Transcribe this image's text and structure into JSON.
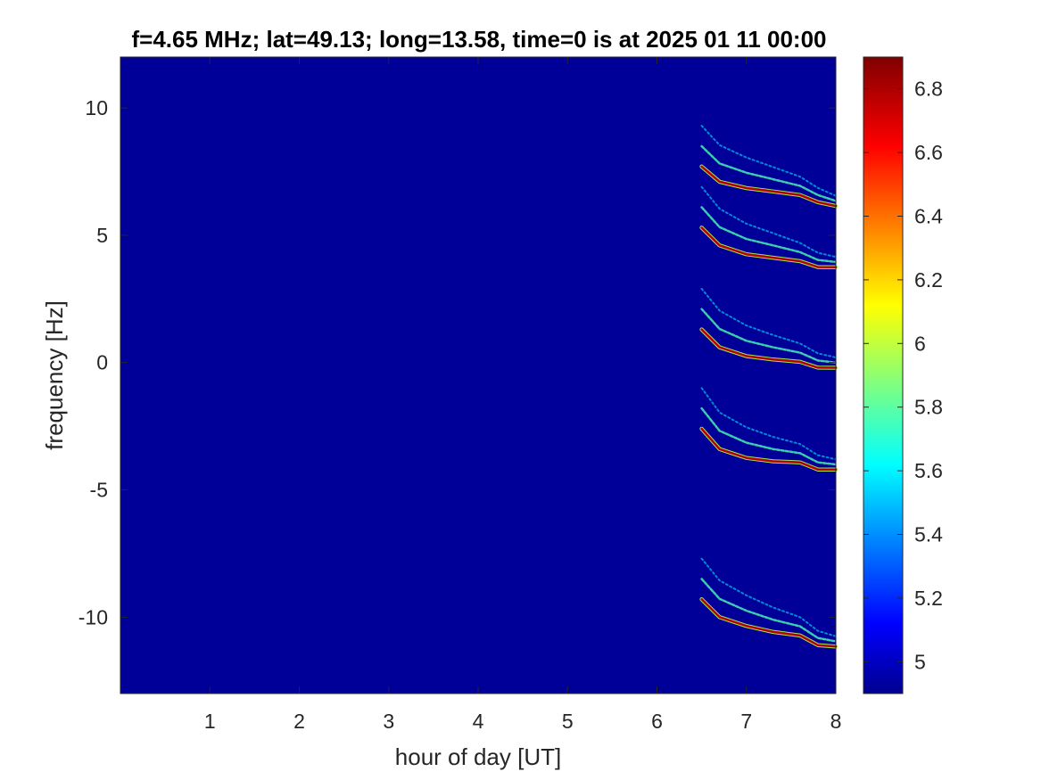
{
  "chart_data": {
    "type": "heatmap",
    "title": "f=4.65 MHz;  lat=49.13; long=13.58, time=0 is at 2025 01 11 00:00",
    "xlabel": "hour of day [UT]",
    "ylabel": "frequency [Hz]",
    "xlim": [
      0,
      8
    ],
    "ylim": [
      -13,
      12
    ],
    "x_ticks": [
      1,
      2,
      3,
      4,
      5,
      6,
      7,
      8
    ],
    "y_ticks": [
      -10,
      -5,
      0,
      5,
      10
    ],
    "colorbar": {
      "colormap": "jet",
      "clim": [
        4.9,
        6.9
      ],
      "ticks": [
        5,
        5.2,
        5.4,
        5.6,
        5.8,
        6,
        6.2,
        6.4,
        6.6,
        6.8
      ]
    },
    "background_value": 4.95,
    "traces": [
      {
        "x": [
          6.5,
          6.7,
          7.0,
          7.3,
          7.6,
          7.8,
          8.0
        ],
        "y": [
          7.7,
          7.1,
          6.9,
          6.7,
          6.5,
          6.4,
          6.2
        ]
      },
      {
        "x": [
          6.5,
          6.7,
          7.0,
          7.3,
          7.6,
          7.8,
          8.0
        ],
        "y": [
          5.3,
          4.6,
          4.3,
          4.1,
          3.9,
          3.85,
          3.8
        ]
      },
      {
        "x": [
          6.5,
          6.7,
          7.0,
          7.3,
          7.6,
          7.8,
          8.0
        ],
        "y": [
          1.3,
          0.6,
          0.3,
          0.1,
          -0.05,
          -0.1,
          -0.15
        ]
      },
      {
        "x": [
          6.5,
          6.7,
          7.0,
          7.3,
          7.6,
          7.8,
          8.0
        ],
        "y": [
          -2.6,
          -3.4,
          -3.7,
          -3.9,
          -4.0,
          -4.1,
          -4.15
        ]
      },
      {
        "x": [
          6.5,
          6.7,
          7.0,
          7.3,
          7.6,
          7.8,
          8.0
        ],
        "y": [
          -9.3,
          -10.0,
          -10.3,
          -10.6,
          -10.8,
          -11.0,
          -11.1
        ]
      }
    ]
  }
}
